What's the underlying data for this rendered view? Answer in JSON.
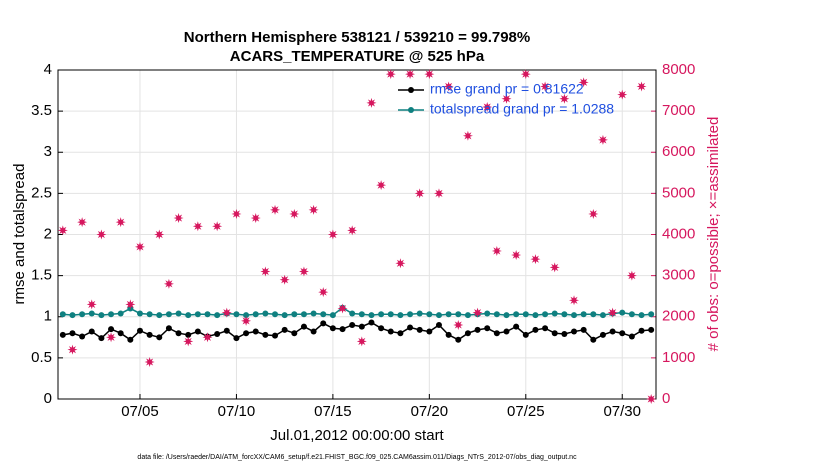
{
  "chart_data": {
    "type": "line",
    "title": "Northern Hemisphere 538121 / 539210 = 99.798%",
    "subtitle": "ACARS_TEMPERATURE @ 525 hPa",
    "xlabel": "Jul.01,2012 00:00:00 start",
    "ylabel": "rmse and totalspread",
    "y2label": "# of obs: o=possible; ×=assimilated",
    "footnote": "data file: /Users/raeder/DAI/ATM_forcXX/CAM6_setup/f.e21.FHIST_BGC.f09_025.CAM6assim.011/Diags_NTrS_2012-07/obs_diag_output.nc",
    "x": [
      1,
      1.5,
      2,
      2.5,
      3,
      3.5,
      4,
      4.5,
      5,
      5.5,
      6,
      6.5,
      7,
      7.5,
      8,
      8.5,
      9,
      9.5,
      10,
      10.5,
      11,
      11.5,
      12,
      12.5,
      13,
      13.5,
      14,
      14.5,
      15,
      15.5,
      16,
      16.5,
      17,
      17.5,
      18,
      18.5,
      19,
      19.5,
      20,
      20.5,
      21,
      21.5,
      22,
      22.5,
      23,
      23.5,
      24,
      24.5,
      25,
      25.5,
      26,
      26.5,
      27,
      27.5,
      28,
      28.5,
      29,
      29.5,
      30,
      30.5,
      31,
      31.5
    ],
    "xlim": [
      0.75,
      31.75
    ],
    "xticks": [
      {
        "value": 5,
        "label": "07/05"
      },
      {
        "value": 10,
        "label": "07/10"
      },
      {
        "value": 15,
        "label": "07/15"
      },
      {
        "value": 20,
        "label": "07/20"
      },
      {
        "value": 25,
        "label": "07/25"
      },
      {
        "value": 30,
        "label": "07/30"
      }
    ],
    "ylim": [
      0,
      4
    ],
    "yticks": [
      0,
      0.5,
      1,
      1.5,
      2,
      2.5,
      3,
      3.5,
      4
    ],
    "y2lim": [
      0,
      8000
    ],
    "y2ticks": [
      0,
      1000,
      2000,
      3000,
      4000,
      5000,
      6000,
      7000,
      8000
    ],
    "grid": true,
    "legend": "top-right",
    "series": [
      {
        "name": "rmse grand pr = 0.81622",
        "color": "#000000",
        "marker": "circle",
        "values": [
          0.78,
          0.8,
          0.76,
          0.82,
          0.74,
          0.85,
          0.8,
          0.72,
          0.83,
          0.78,
          0.75,
          0.86,
          0.8,
          0.78,
          0.82,
          0.76,
          0.79,
          0.83,
          0.74,
          0.8,
          0.82,
          0.78,
          0.77,
          0.84,
          0.8,
          0.88,
          0.82,
          0.92,
          0.86,
          0.85,
          0.9,
          0.88,
          0.93,
          0.86,
          0.82,
          0.8,
          0.87,
          0.84,
          0.82,
          0.9,
          0.78,
          0.72,
          0.8,
          0.84,
          0.86,
          0.8,
          0.82,
          0.88,
          0.78,
          0.84,
          0.86,
          0.8,
          0.79,
          0.82,
          0.84,
          0.72,
          0.78,
          0.82,
          0.8,
          0.76,
          0.83,
          0.84
        ]
      },
      {
        "name": "totalspread grand pr = 1.0288",
        "color": "#0f8080",
        "marker": "circle",
        "values": [
          1.03,
          1.02,
          1.03,
          1.04,
          1.02,
          1.03,
          1.04,
          1.1,
          1.04,
          1.03,
          1.02,
          1.03,
          1.04,
          1.02,
          1.03,
          1.03,
          1.02,
          1.04,
          1.03,
          1.02,
          1.03,
          1.04,
          1.03,
          1.02,
          1.03,
          1.03,
          1.04,
          1.03,
          1.02,
          1.11,
          1.04,
          1.03,
          1.02,
          1.03,
          1.03,
          1.02,
          1.03,
          1.04,
          1.03,
          1.02,
          1.03,
          1.03,
          1.02,
          1.03,
          1.04,
          1.03,
          1.02,
          1.03,
          1.03,
          1.02,
          1.03,
          1.04,
          1.03,
          1.02,
          1.03,
          1.03,
          1.02,
          1.04,
          1.05,
          1.03,
          1.02,
          1.03
        ]
      },
      {
        "color": "#d6175e",
        "marker": "star",
        "axis": "y2",
        "values": [
          4100,
          1200,
          4300,
          2300,
          4000,
          1500,
          4300,
          2300,
          3700,
          900,
          4000,
          2800,
          4400,
          1400,
          4200,
          1500,
          4200,
          2100,
          4500,
          1900,
          4400,
          3100,
          4600,
          2900,
          4500,
          3100,
          4600,
          2600,
          4000,
          2200,
          4100,
          1400,
          7200,
          5200,
          7900,
          3300,
          7900,
          5000,
          7900,
          5000,
          7600,
          1800,
          6400,
          2100,
          7100,
          3600,
          7300,
          3500,
          7900,
          3400,
          7600,
          3200,
          7300,
          2400,
          7700,
          4500,
          6300,
          2100,
          7400,
          3000,
          7600,
          0
        ]
      }
    ]
  }
}
